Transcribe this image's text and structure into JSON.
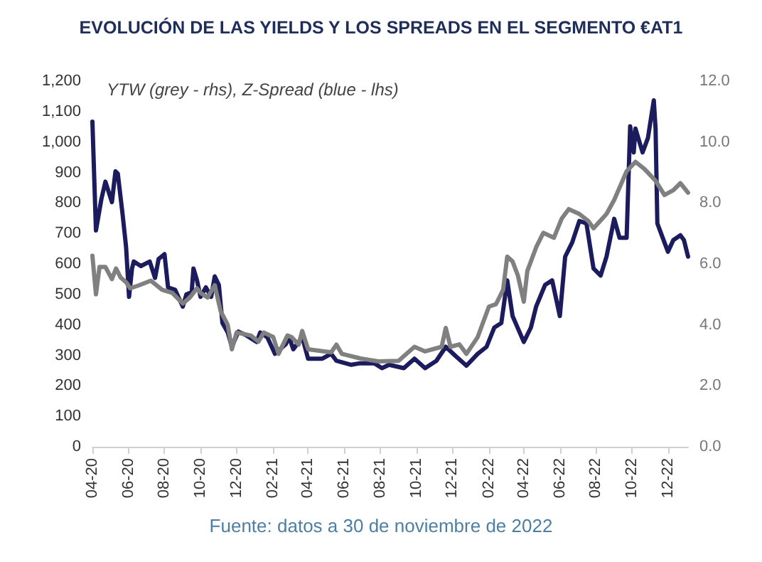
{
  "chart_data": {
    "type": "line",
    "title": "EVOLUCIÓN DE LAS YIELDS Y LOS SPREADS EN EL SEGMENTO €AT1",
    "subtitle": "YTW (grey - rhs), Z-Spread (blue - lhs)",
    "annotations": [
      "Fuente: datos a 30 de noviembre de 2022"
    ],
    "series": [
      {
        "color": "#1b1b5e",
        "x": [
          "2020-04-01",
          "2020-04-07",
          "2020-04-16",
          "2020-04-23",
          "2020-05-04",
          "2020-05-10",
          "2020-05-14",
          "2020-05-22",
          "2020-05-28",
          "2020-06-02",
          "2020-06-07",
          "2020-06-10",
          "2020-06-22",
          "2020-07-07",
          "2020-07-16",
          "2020-07-22",
          "2020-08-01",
          "2020-08-07",
          "2020-08-19",
          "2020-09-01",
          "2020-09-07",
          "2020-09-16",
          "2020-09-19",
          "2020-09-25",
          "2020-10-01",
          "2020-10-10",
          "2020-10-19",
          "2020-10-25",
          "2020-11-01",
          "2020-11-07",
          "2020-11-16",
          "2020-11-23",
          "2020-12-04",
          "2020-12-16",
          "2021-01-04",
          "2021-01-10",
          "2021-01-22",
          "2021-02-04",
          "2021-02-22",
          "2021-02-28",
          "2021-03-07",
          "2021-03-22",
          "2021-04-01",
          "2021-04-25",
          "2021-05-10",
          "2021-05-19",
          "2021-06-13",
          "2021-06-28",
          "2021-07-22",
          "2021-08-04",
          "2021-08-16",
          "2021-09-10",
          "2021-09-28",
          "2021-10-16",
          "2021-11-04",
          "2021-11-20",
          "2021-12-07",
          "2021-12-25",
          "2022-01-13",
          "2022-01-28",
          "2022-02-10",
          "2022-02-22",
          "2022-03-04",
          "2022-03-13",
          "2022-04-01",
          "2022-04-13",
          "2022-04-22",
          "2022-05-07",
          "2022-05-19",
          "2022-06-01",
          "2022-06-10",
          "2022-06-22",
          "2022-07-04",
          "2022-07-16",
          "2022-07-28",
          "2022-08-09",
          "2022-08-19",
          "2022-09-01",
          "2022-09-10",
          "2022-09-22",
          "2022-09-28",
          "2022-10-04",
          "2022-10-07",
          "2022-10-19",
          "2022-10-28",
          "2022-11-07",
          "2022-11-10",
          "2022-11-13",
          "2022-11-22",
          "2022-12-01",
          "2022-12-10",
          "2022-12-22",
          "2022-12-28",
          "2023-01-04"
        ],
        "values": [
          1067,
          710,
          811,
          870,
          803,
          904,
          896,
          764,
          655,
          492,
          585,
          608,
          593,
          608,
          554,
          616,
          632,
          523,
          515,
          460,
          500,
          507,
          585,
          546,
          492,
          523,
          492,
          559,
          531,
          406,
          375,
          328,
          378,
          367,
          344,
          375,
          359,
          305,
          336,
          359,
          320,
          360,
          289,
          289,
          305,
          282,
          269,
          274,
          274,
          258,
          269,
          258,
          289,
          258,
          282,
          328,
          297,
          266,
          305,
          328,
          391,
          406,
          546,
          429,
          344,
          391,
          461,
          531,
          546,
          429,
          624,
          671,
          741,
          733,
          585,
          562,
          624,
          748,
          686,
          686,
          1052,
          966,
          1044,
          966,
          1013,
          1137,
          1044,
          733,
          686,
          640,
          678,
          694,
          678,
          624
        ]
      },
      {
        "color": "#808080",
        "axis": "y2",
        "x": [
          "2020-04-01",
          "2020-04-07",
          "2020-04-13",
          "2020-04-23",
          "2020-05-04",
          "2020-05-11",
          "2020-05-19",
          "2020-05-28",
          "2020-06-04",
          "2020-06-19",
          "2020-07-09",
          "2020-07-28",
          "2020-08-14",
          "2020-09-01",
          "2020-09-13",
          "2020-09-25",
          "2020-10-01",
          "2020-10-13",
          "2020-10-25",
          "2020-11-04",
          "2020-11-16",
          "2020-11-23",
          "2020-12-01",
          "2020-12-25",
          "2021-01-07",
          "2021-01-16",
          "2021-02-01",
          "2021-02-10",
          "2021-02-25",
          "2021-03-04",
          "2021-03-16",
          "2021-03-22",
          "2021-04-01",
          "2021-05-10",
          "2021-05-19",
          "2021-05-28",
          "2021-06-28",
          "2021-07-29",
          "2021-09-01",
          "2021-09-28",
          "2021-10-16",
          "2021-11-13",
          "2021-11-20",
          "2021-11-28",
          "2021-12-13",
          "2021-12-25",
          "2022-01-13",
          "2022-02-01",
          "2022-02-13",
          "2022-02-25",
          "2022-03-04",
          "2022-03-13",
          "2022-03-22",
          "2022-04-01",
          "2022-04-07",
          "2022-04-22",
          "2022-05-04",
          "2022-05-22",
          "2022-06-04",
          "2022-06-16",
          "2022-07-04",
          "2022-07-19",
          "2022-07-28",
          "2022-08-19",
          "2022-09-01",
          "2022-09-22",
          "2022-10-07",
          "2022-10-22",
          "2022-11-10",
          "2022-11-25",
          "2022-12-10",
          "2022-12-22",
          "2023-01-04"
        ],
        "values": [
          6.27,
          5.0,
          5.9,
          5.9,
          5.5,
          5.85,
          5.55,
          5.4,
          5.2,
          5.3,
          5.45,
          5.15,
          5.05,
          4.7,
          4.9,
          5.2,
          5.05,
          4.9,
          5.3,
          4.45,
          4.0,
          3.2,
          3.75,
          3.65,
          3.45,
          3.75,
          3.6,
          3.05,
          3.65,
          3.6,
          3.35,
          3.8,
          3.2,
          3.1,
          3.35,
          3.05,
          2.9,
          2.8,
          2.82,
          3.28,
          3.13,
          3.28,
          3.9,
          3.28,
          3.36,
          3.05,
          3.6,
          4.6,
          4.68,
          5.15,
          6.24,
          6.08,
          5.62,
          4.76,
          5.77,
          6.55,
          7.02,
          6.86,
          7.48,
          7.8,
          7.64,
          7.41,
          7.17,
          7.64,
          8.1,
          9.04,
          9.35,
          9.12,
          8.73,
          8.26,
          8.42,
          8.65,
          8.34
        ]
      }
    ],
    "xlim": [
      "2020-04-01",
      "2023-01-04"
    ],
    "xticks": [
      {
        "value": "2020-04-01",
        "label": "04-20"
      },
      {
        "value": "2020-06-01",
        "label": "06-20"
      },
      {
        "value": "2020-08-01",
        "label": "08-20"
      },
      {
        "value": "2020-10-01",
        "label": "10-20"
      },
      {
        "value": "2020-12-01",
        "label": "12-20"
      },
      {
        "value": "2021-02-01",
        "label": "02-21"
      },
      {
        "value": "2021-04-01",
        "label": "04-21"
      },
      {
        "value": "2021-06-01",
        "label": "06-21"
      },
      {
        "value": "2021-08-01",
        "label": "08-21"
      },
      {
        "value": "2021-10-01",
        "label": "10-21"
      },
      {
        "value": "2021-12-01",
        "label": "12-21"
      },
      {
        "value": "2022-02-01",
        "label": "02-22"
      },
      {
        "value": "2022-04-01",
        "label": "04-22"
      },
      {
        "value": "2022-06-01",
        "label": "06-22"
      },
      {
        "value": "2022-08-01",
        "label": "08-22"
      },
      {
        "value": "2022-10-01",
        "label": "10-22"
      },
      {
        "value": "2022-12-01",
        "label": "12-22"
      }
    ],
    "ylim": [
      0,
      1200
    ],
    "yticks": [
      0,
      100,
      200,
      300,
      400,
      500,
      600,
      700,
      800,
      900,
      {
        "value": 1000,
        "label": "1,000"
      },
      {
        "value": 1100,
        "label": "1,100"
      },
      {
        "value": 1200,
        "label": "1,200"
      }
    ],
    "y2lim": [
      0,
      12
    ],
    "y2ticks": [
      {
        "value": 0,
        "label": "0.0"
      },
      {
        "value": 2,
        "label": "2.0"
      },
      {
        "value": 4,
        "label": "4.0"
      },
      {
        "value": 6,
        "label": "6.0"
      },
      {
        "value": 8,
        "label": "8.0"
      },
      {
        "value": 10,
        "label": "10.0"
      },
      {
        "value": 12,
        "label": "12.0"
      }
    ],
    "grid": false,
    "marker": "none",
    "line_style": "solid"
  }
}
